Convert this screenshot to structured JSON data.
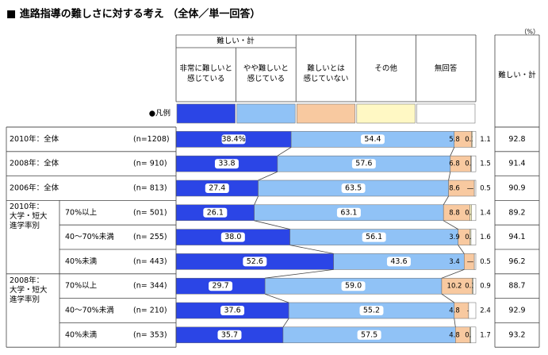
{
  "chart_data": {
    "type": "stacked-bar-100",
    "title": "■ 進路指導の難しさに対する考え （全体／単一回答）",
    "unit": "（%）",
    "series_group_label": "難しい・計",
    "legend_label": "●凡例",
    "total_header": "難しい・計",
    "categories": [
      "2010年：全体",
      "2008年：全体",
      "2006年：全体",
      "70%以上",
      "40～70%未満",
      "40%未満",
      "70%以上",
      "40～70%未満",
      "40%未満"
    ],
    "groups": [
      null,
      null,
      null,
      "2010年：\n大学・短大\n進学率別",
      null,
      null,
      "2008年：\n大学・短大\n進学率別",
      null,
      null
    ],
    "n_labels": [
      "(n=1208)",
      "(n= 910)",
      "(n= 813)",
      "(n= 501)",
      "(n= 255)",
      "(n= 443)",
      "(n= 344)",
      "(n= 210)",
      "(n= 353)"
    ],
    "series": [
      {
        "name": "非常に難しいと\n感じている",
        "color": "#2b45e6",
        "values": [
          38.4,
          33.8,
          27.4,
          26.1,
          38.0,
          52.6,
          29.7,
          37.6,
          35.7
        ],
        "value_labels": [
          "38.4%",
          "33.8",
          "27.4",
          "26.1",
          "38.0",
          "52.6",
          "29.7",
          "37.6",
          "35.7"
        ]
      },
      {
        "name": "やや難しいと\n感じている",
        "color": "#90c2f6",
        "values": [
          54.4,
          57.6,
          63.5,
          63.1,
          56.1,
          43.6,
          59.0,
          55.2,
          57.5
        ],
        "value_labels": [
          "54.4",
          "57.6",
          "63.5",
          "63.1",
          "56.1",
          "43.6",
          "59.0",
          "55.2",
          "57.5"
        ]
      },
      {
        "name": "難しいとは\n感じていない",
        "color": "#f8c9a0",
        "values": [
          5.8,
          6.8,
          8.6,
          8.8,
          3.9,
          3.4,
          10.2,
          4.8,
          4.8
        ],
        "value_labels": [
          "5.8",
          "6.8",
          "8.6",
          "8.8",
          "3.9",
          "3.4",
          "10.2",
          "4.8",
          "4.8"
        ]
      },
      {
        "name": "その他",
        "color": "#fff8c4",
        "values": [
          0.3,
          0.2,
          null,
          0.6,
          0.4,
          null,
          0.3,
          null,
          0.3
        ],
        "value_labels": [
          "0.3",
          "0.2",
          "—",
          "0.6",
          "0.4",
          "—",
          "0.3",
          "—",
          "0.3"
        ]
      },
      {
        "name": "無回答",
        "color": "#ffffff",
        "values": [
          1.1,
          1.5,
          0.5,
          1.4,
          1.6,
          0.5,
          0.9,
          2.4,
          1.7
        ],
        "value_labels": [
          "1.1",
          "1.5",
          "0.5",
          "1.4",
          "1.6",
          "0.5",
          "0.9",
          "2.4",
          "1.7"
        ]
      }
    ],
    "totals": [
      92.8,
      91.4,
      90.9,
      89.2,
      94.1,
      96.2,
      88.7,
      92.9,
      93.2
    ]
  }
}
